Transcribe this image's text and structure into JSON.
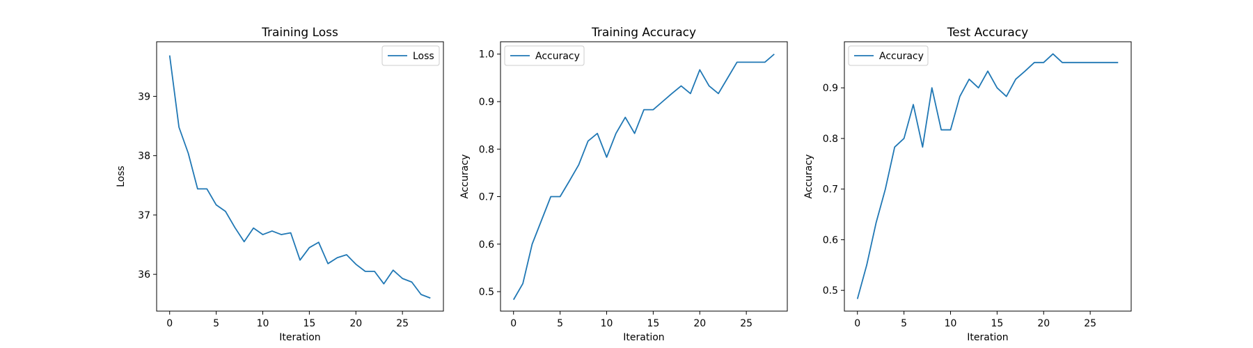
{
  "figure": {
    "background": "#ffffff",
    "line_color": "#1f77b4"
  },
  "chart_data": [
    {
      "type": "line",
      "title": "Training Loss",
      "xlabel": "Iteration",
      "ylabel": "Loss",
      "xlim": [
        -1.4,
        29.4
      ],
      "ylim": [
        35.38,
        39.92
      ],
      "xticks": [
        0,
        5,
        10,
        15,
        20,
        25
      ],
      "yticks": [
        36,
        37,
        38,
        39
      ],
      "legend_position": "upper right",
      "grid": false,
      "series": [
        {
          "name": "Loss",
          "x": [
            0,
            1,
            2,
            3,
            4,
            5,
            6,
            7,
            8,
            9,
            10,
            11,
            12,
            13,
            14,
            15,
            16,
            17,
            18,
            19,
            20,
            21,
            22,
            23,
            24,
            25,
            26,
            27,
            28
          ],
          "y": [
            39.69,
            38.48,
            38.04,
            37.44,
            37.44,
            37.17,
            37.06,
            36.79,
            36.55,
            36.78,
            36.67,
            36.73,
            36.67,
            36.7,
            36.24,
            36.45,
            36.54,
            36.18,
            36.28,
            36.33,
            36.17,
            36.05,
            36.05,
            35.84,
            36.07,
            35.93,
            35.87,
            35.66,
            35.6
          ]
        }
      ]
    },
    {
      "type": "line",
      "title": "Training Accuracy",
      "xlabel": "Iteration",
      "ylabel": "Accuracy",
      "xlim": [
        -1.4,
        29.4
      ],
      "ylim": [
        0.459,
        1.026
      ],
      "xticks": [
        0,
        5,
        10,
        15,
        20,
        25
      ],
      "yticks": [
        0.5,
        0.6,
        0.7,
        0.8,
        0.9,
        1.0
      ],
      "yticklabels": [
        "0.5",
        "0.6",
        "0.7",
        "0.8",
        "0.9",
        "1.0"
      ],
      "legend_position": "upper left",
      "grid": false,
      "series": [
        {
          "name": "Accuracy",
          "x": [
            0,
            1,
            2,
            3,
            4,
            5,
            6,
            7,
            8,
            9,
            10,
            11,
            12,
            13,
            14,
            15,
            16,
            17,
            18,
            19,
            20,
            21,
            22,
            23,
            24,
            25,
            26,
            27,
            28
          ],
          "y": [
            0.483,
            0.517,
            0.6,
            0.65,
            0.7,
            0.7,
            0.733,
            0.767,
            0.817,
            0.833,
            0.783,
            0.833,
            0.867,
            0.833,
            0.883,
            0.883,
            0.9,
            0.917,
            0.933,
            0.917,
            0.967,
            0.933,
            0.917,
            0.95,
            0.983,
            0.983,
            0.983,
            0.983,
            1.0
          ]
        }
      ]
    },
    {
      "type": "line",
      "title": "Test Accuracy",
      "xlabel": "Iteration",
      "ylabel": "Accuracy",
      "xlim": [
        -1.4,
        29.4
      ],
      "ylim": [
        0.459,
        0.991
      ],
      "xticks": [
        0,
        5,
        10,
        15,
        20,
        25
      ],
      "yticks": [
        0.5,
        0.6,
        0.7,
        0.8,
        0.9
      ],
      "yticklabels": [
        "0.5",
        "0.6",
        "0.7",
        "0.8",
        "0.9"
      ],
      "legend_position": "upper left",
      "grid": false,
      "series": [
        {
          "name": "Accuracy",
          "x": [
            0,
            1,
            2,
            3,
            4,
            5,
            6,
            7,
            8,
            9,
            10,
            11,
            12,
            13,
            14,
            15,
            16,
            17,
            18,
            19,
            20,
            21,
            22,
            23,
            24,
            25,
            26,
            27,
            28
          ],
          "y": [
            0.483,
            0.55,
            0.633,
            0.7,
            0.783,
            0.8,
            0.867,
            0.783,
            0.9,
            0.817,
            0.817,
            0.883,
            0.917,
            0.9,
            0.933,
            0.9,
            0.883,
            0.917,
            0.933,
            0.95,
            0.95,
            0.967,
            0.95,
            0.95,
            0.95,
            0.95,
            0.95,
            0.95,
            0.95
          ]
        }
      ]
    }
  ]
}
